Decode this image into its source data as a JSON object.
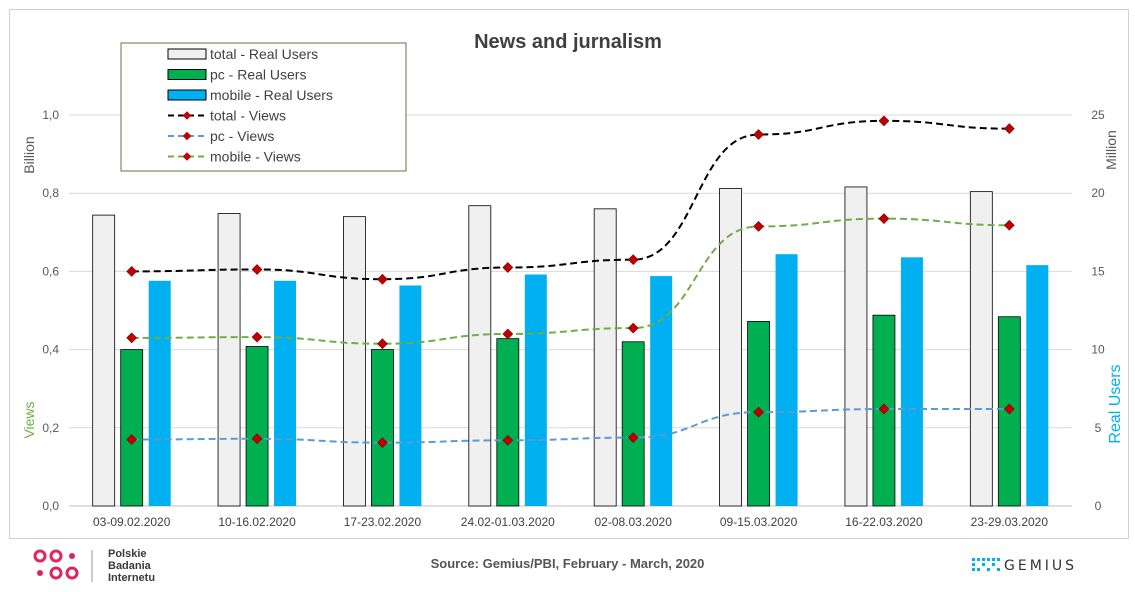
{
  "chart_data": {
    "type": "bar",
    "title": "News and jurnalism",
    "categories": [
      "03-09.02.2020",
      "10-16.02.2020",
      "17-23.02.2020",
      "24.02-01.03.2020",
      "02-08.03.2020",
      "09-15.03.2020",
      "16-22.03.2020",
      "23-29.03.2020"
    ],
    "left_axis": {
      "unit": "Billion",
      "label": "Views",
      "ylim": [
        0,
        1.0
      ],
      "ticks": [
        "0,0",
        "0,2",
        "0,4",
        "0,6",
        "0,8",
        "1,0"
      ]
    },
    "right_axis": {
      "unit": "Million",
      "label": "Real Users",
      "ylim": [
        0,
        25
      ],
      "ticks": [
        "0",
        "5",
        "10",
        "15",
        "20",
        "25"
      ]
    },
    "series": [
      {
        "name": "total - Real Users",
        "kind": "bar",
        "axis": "right",
        "color": "#f0f0f0",
        "values": [
          18.6,
          18.7,
          18.5,
          19.2,
          19.0,
          20.3,
          20.4,
          20.1
        ]
      },
      {
        "name": "pc - Real Users",
        "kind": "bar",
        "axis": "right",
        "color": "#00b050",
        "values": [
          10.0,
          10.2,
          10.0,
          10.7,
          10.5,
          11.8,
          12.2,
          12.1
        ]
      },
      {
        "name": "mobile - Real Users",
        "kind": "bar",
        "axis": "right",
        "color": "#00b0f0",
        "values": [
          14.4,
          14.4,
          14.1,
          14.8,
          14.7,
          16.1,
          15.9,
          15.4
        ]
      },
      {
        "name": "total - Views",
        "kind": "line",
        "axis": "left",
        "color": "#000000",
        "values": [
          0.6,
          0.605,
          0.58,
          0.61,
          0.63,
          0.95,
          0.985,
          0.965
        ]
      },
      {
        "name": "pc - Views",
        "kind": "line",
        "axis": "left",
        "color": "#5b9bd5",
        "values": [
          0.17,
          0.172,
          0.162,
          0.168,
          0.175,
          0.24,
          0.248,
          0.248
        ]
      },
      {
        "name": "mobile - Views",
        "kind": "line",
        "axis": "left",
        "color": "#70ad47",
        "values": [
          0.43,
          0.432,
          0.415,
          0.44,
          0.455,
          0.715,
          0.735,
          0.718
        ]
      }
    ],
    "marker_color": "#c00000",
    "grid": true,
    "legend_position": "top-left"
  },
  "footer": {
    "source": "Source: Gemius/PBI, February - March, 2020",
    "pbi_line1": "Polskie",
    "pbi_line2": "Badania",
    "pbi_line3": "Internetu",
    "gemius": "GEMIUS"
  }
}
